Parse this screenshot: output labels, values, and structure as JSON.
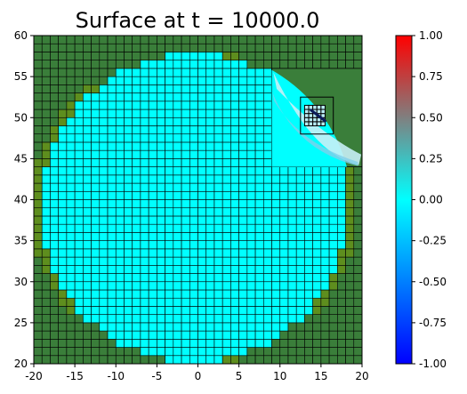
{
  "chart_data": {
    "type": "heatmap",
    "title": "Surface at t =  10000.0",
    "xlabel": "",
    "ylabel": "",
    "xlim": [
      -20,
      20
    ],
    "ylim": [
      20,
      60
    ],
    "x_ticks": [
      "-20",
      "-15",
      "-10",
      "-5",
      "0",
      "5",
      "10",
      "15",
      "20"
    ],
    "y_ticks": [
      "20",
      "25",
      "30",
      "35",
      "40",
      "45",
      "50",
      "55",
      "60"
    ],
    "colorbar": {
      "range": [
        -1.0,
        1.0
      ],
      "tick_labels": [
        "1.00",
        "0.75",
        "0.50",
        "0.25",
        "0.00",
        "-0.25",
        "-0.50",
        "-0.75",
        "-1.00"
      ],
      "colormap_stops": [
        "#0000ff",
        "#00ffff",
        "#ff0000"
      ]
    },
    "grid": true,
    "land_color": "#3a7e3a",
    "shoreline_land_color": "#5e8e1e",
    "water_color": "#00ffff",
    "surface_value": 0.0,
    "lake_center": [
      -0.5,
      39.0
    ],
    "lake_radius": 19.0,
    "coarse_cell_size": 1.0,
    "refined_patch": {
      "xlim": [
        9.0,
        20.0
      ],
      "ylim": [
        44.0,
        56.0
      ],
      "inner_box_x": [
        12.5,
        16.5
      ],
      "inner_box_y": [
        48.0,
        52.5
      ],
      "finest_grid_x": [
        13.0,
        15.5
      ],
      "finest_grid_y": [
        49.0,
        51.5
      ],
      "finest_cell_size": 0.5,
      "feature_point": [
        14.6,
        50.3
      ]
    }
  }
}
